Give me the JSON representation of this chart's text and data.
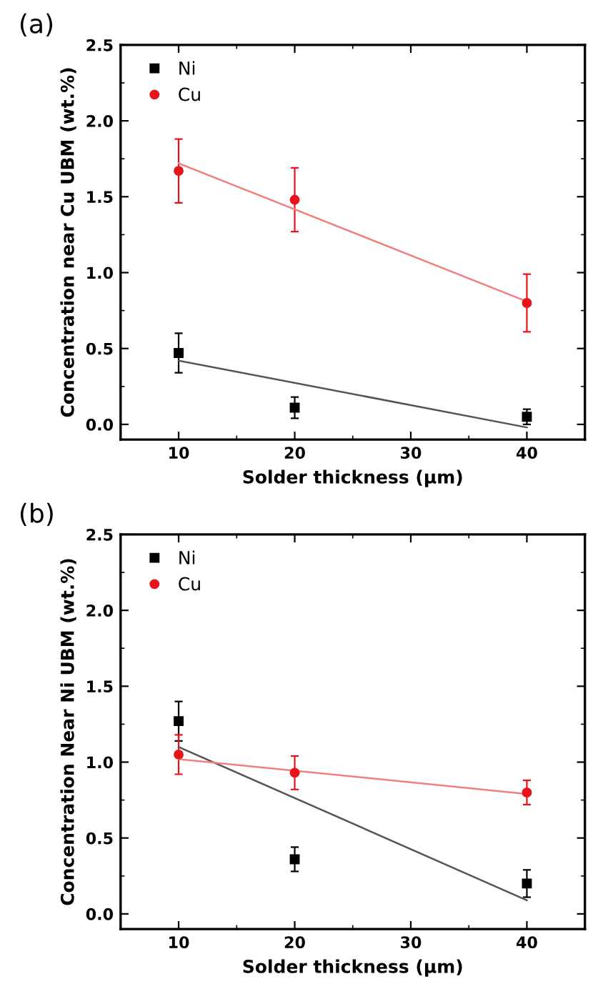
{
  "chart_data": [
    {
      "type": "scatter",
      "title": "(a)",
      "xlabel": "Solder thickness (μm)",
      "ylabel": "Concentration near Cu UBM (wt.%)",
      "xlim": [
        5,
        45
      ],
      "ylim": [
        -0.1,
        2.5
      ],
      "xticks": [
        10,
        20,
        30,
        40
      ],
      "yticks": [
        {
          "value": 0,
          "label": "0.0"
        },
        0.5,
        {
          "value": 1,
          "label": "1.0"
        },
        1.5,
        {
          "value": 2,
          "label": "2.0"
        },
        2.5
      ],
      "legend": "top left",
      "grid": false,
      "series": [
        {
          "name": "Ni",
          "color": "#000000",
          "marker": "square",
          "x": [
            10,
            20,
            40
          ],
          "values": [
            0.47,
            0.11,
            0.05
          ],
          "errors": [
            0.13,
            0.07,
            0.05
          ]
        },
        {
          "name": "Cu",
          "color": "#e8141c",
          "marker": "circle",
          "x": [
            10,
            20,
            40
          ],
          "values": [
            1.67,
            1.48,
            0.8
          ],
          "errors": [
            0.21,
            0.21,
            0.19
          ]
        },
        {
          "type": "line",
          "color": "#555555",
          "x": [
            10,
            40
          ],
          "values": [
            0.42,
            -0.02
          ]
        },
        {
          "type": "line",
          "color": "#f08080",
          "x": [
            10,
            40
          ],
          "values": [
            1.72,
            0.81
          ]
        }
      ]
    },
    {
      "type": "scatter",
      "title": "(b)",
      "xlabel": "Solder thickness (μm)",
      "ylabel": "Concentration Near Ni UBM (wt.%)",
      "xlim": [
        5,
        45
      ],
      "ylim": [
        -0.1,
        2.5
      ],
      "xticks": [
        10,
        20,
        30,
        40
      ],
      "yticks": [
        {
          "value": 0,
          "label": "0.0"
        },
        0.5,
        {
          "value": 1,
          "label": "1.0"
        },
        1.5,
        {
          "value": 2,
          "label": "2.0"
        },
        2.5
      ],
      "legend": "top left",
      "grid": false,
      "series": [
        {
          "name": "Ni",
          "color": "#000000",
          "marker": "square",
          "x": [
            10,
            20,
            40
          ],
          "values": [
            1.27,
            0.36,
            0.2
          ],
          "errors": [
            0.13,
            0.08,
            0.09
          ]
        },
        {
          "name": "Cu",
          "color": "#e8141c",
          "marker": "circle",
          "x": [
            10,
            20,
            40
          ],
          "values": [
            1.05,
            0.93,
            0.8
          ],
          "errors": [
            0.13,
            0.11,
            0.08
          ]
        },
        {
          "type": "line",
          "color": "#555555",
          "x": [
            10,
            40
          ],
          "values": [
            1.1,
            0.09
          ]
        },
        {
          "type": "line",
          "color": "#f08080",
          "x": [
            10,
            40
          ],
          "values": [
            1.02,
            0.79
          ]
        }
      ]
    }
  ]
}
